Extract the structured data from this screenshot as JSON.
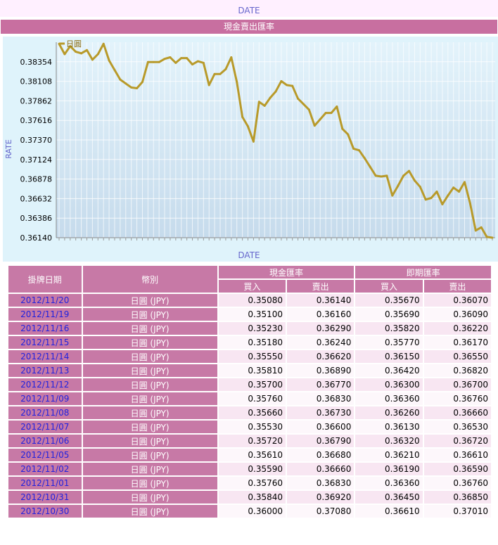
{
  "top": {
    "axis_label": "DATE"
  },
  "chart": {
    "panel_title": "現金賣出匯率"
  },
  "chart_data": {
    "type": "line",
    "title": "現金賣出匯率",
    "xlabel": "DATE",
    "ylabel": "RATE",
    "legend": {
      "label": "日圓",
      "color": "#b89a2a",
      "position": "top-left"
    },
    "yticks": [
      "0.38354",
      "0.38108",
      "0.37862",
      "0.37616",
      "0.37370",
      "0.37124",
      "0.36878",
      "0.36632",
      "0.36386",
      "0.36140"
    ],
    "ylim": [
      0.3614,
      0.386
    ],
    "series": [
      {
        "name": "日圓",
        "values": [
          0.3858,
          0.3845,
          0.3855,
          0.3848,
          0.3846,
          0.385,
          0.3838,
          0.3845,
          0.3858,
          0.3837,
          0.3825,
          0.3813,
          0.3808,
          0.3803,
          0.3802,
          0.381,
          0.3835,
          0.3835,
          0.3835,
          0.3839,
          0.3841,
          0.3834,
          0.384,
          0.384,
          0.3832,
          0.3836,
          0.3834,
          0.3806,
          0.382,
          0.382,
          0.3826,
          0.3841,
          0.381,
          0.3766,
          0.3754,
          0.3735,
          0.3785,
          0.378,
          0.379,
          0.3798,
          0.3811,
          0.3806,
          0.3805,
          0.3789,
          0.3782,
          0.3775,
          0.3755,
          0.3763,
          0.3771,
          0.3771,
          0.3779,
          0.3751,
          0.3744,
          0.3726,
          0.3724,
          0.3714,
          0.3703,
          0.3692,
          0.3691,
          0.3692,
          0.3667,
          0.3679,
          0.3692,
          0.3698,
          0.3686,
          0.3678,
          0.3662,
          0.3664,
          0.3672,
          0.3656,
          0.3667,
          0.3677,
          0.3672,
          0.3684,
          0.3657,
          0.3623,
          0.3627,
          0.3615,
          0.3614
        ]
      }
    ]
  },
  "table": {
    "headers": {
      "date": "掛牌日期",
      "currency": "幣別",
      "cash": "現金匯率",
      "spot": "即期匯率",
      "buy": "買入",
      "sell": "賣出"
    },
    "rows": [
      {
        "date": "2012/11/20",
        "currency": "日圓 (JPY)",
        "cash_buy": "0.35080",
        "cash_sell": "0.36140",
        "spot_buy": "0.35670",
        "spot_sell": "0.36070"
      },
      {
        "date": "2012/11/19",
        "currency": "日圓 (JPY)",
        "cash_buy": "0.35100",
        "cash_sell": "0.36160",
        "spot_buy": "0.35690",
        "spot_sell": "0.36090"
      },
      {
        "date": "2012/11/16",
        "currency": "日圓 (JPY)",
        "cash_buy": "0.35230",
        "cash_sell": "0.36290",
        "spot_buy": "0.35820",
        "spot_sell": "0.36220"
      },
      {
        "date": "2012/11/15",
        "currency": "日圓 (JPY)",
        "cash_buy": "0.35180",
        "cash_sell": "0.36240",
        "spot_buy": "0.35770",
        "spot_sell": "0.36170"
      },
      {
        "date": "2012/11/14",
        "currency": "日圓 (JPY)",
        "cash_buy": "0.35550",
        "cash_sell": "0.36620",
        "spot_buy": "0.36150",
        "spot_sell": "0.36550"
      },
      {
        "date": "2012/11/13",
        "currency": "日圓 (JPY)",
        "cash_buy": "0.35810",
        "cash_sell": "0.36890",
        "spot_buy": "0.36420",
        "spot_sell": "0.36820"
      },
      {
        "date": "2012/11/12",
        "currency": "日圓 (JPY)",
        "cash_buy": "0.35700",
        "cash_sell": "0.36770",
        "spot_buy": "0.36300",
        "spot_sell": "0.36700"
      },
      {
        "date": "2012/11/09",
        "currency": "日圓 (JPY)",
        "cash_buy": "0.35760",
        "cash_sell": "0.36830",
        "spot_buy": "0.36360",
        "spot_sell": "0.36760"
      },
      {
        "date": "2012/11/08",
        "currency": "日圓 (JPY)",
        "cash_buy": "0.35660",
        "cash_sell": "0.36730",
        "spot_buy": "0.36260",
        "spot_sell": "0.36660"
      },
      {
        "date": "2012/11/07",
        "currency": "日圓 (JPY)",
        "cash_buy": "0.35530",
        "cash_sell": "0.36600",
        "spot_buy": "0.36130",
        "spot_sell": "0.36530"
      },
      {
        "date": "2012/11/06",
        "currency": "日圓 (JPY)",
        "cash_buy": "0.35720",
        "cash_sell": "0.36790",
        "spot_buy": "0.36320",
        "spot_sell": "0.36720"
      },
      {
        "date": "2012/11/05",
        "currency": "日圓 (JPY)",
        "cash_buy": "0.35610",
        "cash_sell": "0.36680",
        "spot_buy": "0.36210",
        "spot_sell": "0.36610"
      },
      {
        "date": "2012/11/02",
        "currency": "日圓 (JPY)",
        "cash_buy": "0.35590",
        "cash_sell": "0.36660",
        "spot_buy": "0.36190",
        "spot_sell": "0.36590"
      },
      {
        "date": "2012/11/01",
        "currency": "日圓 (JPY)",
        "cash_buy": "0.35760",
        "cash_sell": "0.36830",
        "spot_buy": "0.36360",
        "spot_sell": "0.36760"
      },
      {
        "date": "2012/10/31",
        "currency": "日圓 (JPY)",
        "cash_buy": "0.35840",
        "cash_sell": "0.36920",
        "spot_buy": "0.36450",
        "spot_sell": "0.36850"
      },
      {
        "date": "2012/10/30",
        "currency": "日圓 (JPY)",
        "cash_buy": "0.36000",
        "cash_sell": "0.37080",
        "spot_buy": "0.36610",
        "spot_sell": "0.37010"
      }
    ]
  }
}
